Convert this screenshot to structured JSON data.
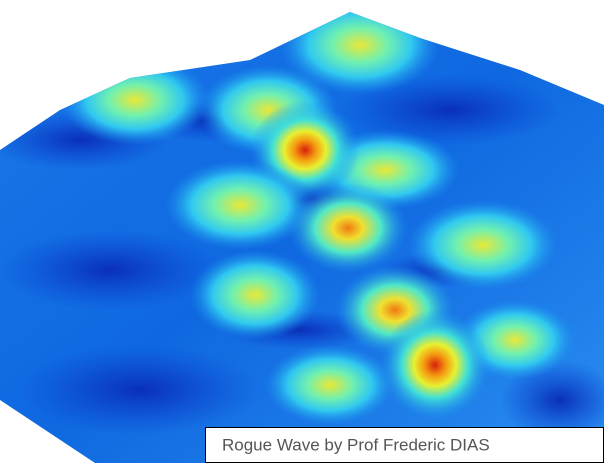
{
  "caption": {
    "text": "Rogue Wave by Prof Frederic DIAS"
  }
}
